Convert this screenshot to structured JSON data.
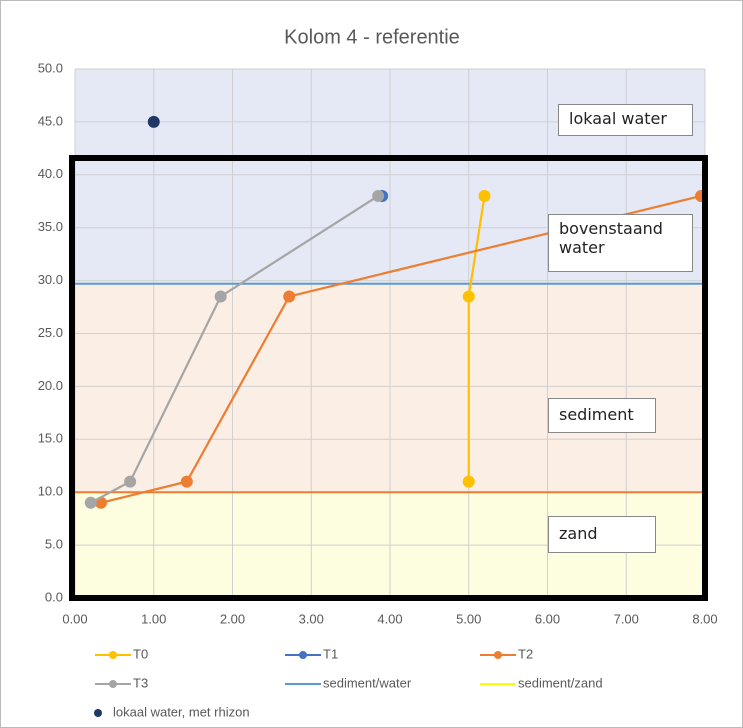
{
  "chart_data": {
    "type": "line",
    "title": "Kolom 4 - referentie",
    "xlim": [
      0,
      8
    ],
    "ylim": [
      0,
      50
    ],
    "xticks": [
      {
        "value": 0,
        "label": "0.00"
      },
      {
        "value": 1,
        "label": "1.00"
      },
      {
        "value": 2,
        "label": "2.00"
      },
      {
        "value": 3,
        "label": "3.00"
      },
      {
        "value": 4,
        "label": "4.00"
      },
      {
        "value": 5,
        "label": "5.00"
      },
      {
        "value": 6,
        "label": "6.00"
      },
      {
        "value": 7,
        "label": "7.00"
      },
      {
        "value": 8,
        "label": "8.00"
      }
    ],
    "yticks": [
      {
        "value": 0,
        "label": "0.0"
      },
      {
        "value": 5,
        "label": "5.0"
      },
      {
        "value": 10,
        "label": "10.0"
      },
      {
        "value": 15,
        "label": "15.0"
      },
      {
        "value": 20,
        "label": "20.0"
      },
      {
        "value": 25,
        "label": "25.0"
      },
      {
        "value": 30,
        "label": "30.0"
      },
      {
        "value": 35,
        "label": "35.0"
      },
      {
        "value": 40,
        "label": "40.0"
      },
      {
        "value": 45,
        "label": "45.0"
      },
      {
        "value": 50,
        "label": "50.0"
      }
    ],
    "grid": true,
    "band_colors": [
      "#fdfde0",
      "#fbeee4",
      "#e4e9f5"
    ],
    "series": [
      {
        "name": "T0",
        "kind": "line",
        "color": "#FFC000",
        "x": [
          5.0,
          5.0,
          5.2
        ],
        "y": [
          11,
          28.5,
          38
        ]
      },
      {
        "name": "T1",
        "kind": "line",
        "color": "#4472C4",
        "x": [
          3.9
        ],
        "y": [
          38
        ]
      },
      {
        "name": "T2",
        "kind": "line",
        "color": "#ED7D31",
        "x": [
          0.33,
          1.42,
          2.72,
          7.95
        ],
        "y": [
          9,
          11,
          28.5,
          38
        ]
      },
      {
        "name": "T3",
        "kind": "line",
        "color": "#A5A5A5",
        "x": [
          0.2,
          0.7,
          1.85,
          3.85
        ],
        "y": [
          9,
          11,
          28.5,
          38
        ]
      },
      {
        "name": "sediment/water",
        "kind": "hline",
        "color": "#5B9BD5",
        "value": 29.7
      },
      {
        "name": "sediment/zand",
        "kind": "hline",
        "color": "#ED7D31",
        "legend_color": "#FFFF00",
        "value": 10
      },
      {
        "name": "lokaal water, met rhizon",
        "kind": "point",
        "color": "#203864",
        "x": [
          1.0
        ],
        "y": [
          45
        ]
      }
    ],
    "annotations": [
      "lokaal water",
      "bovenstaand water",
      "sediment",
      "zand"
    ]
  }
}
